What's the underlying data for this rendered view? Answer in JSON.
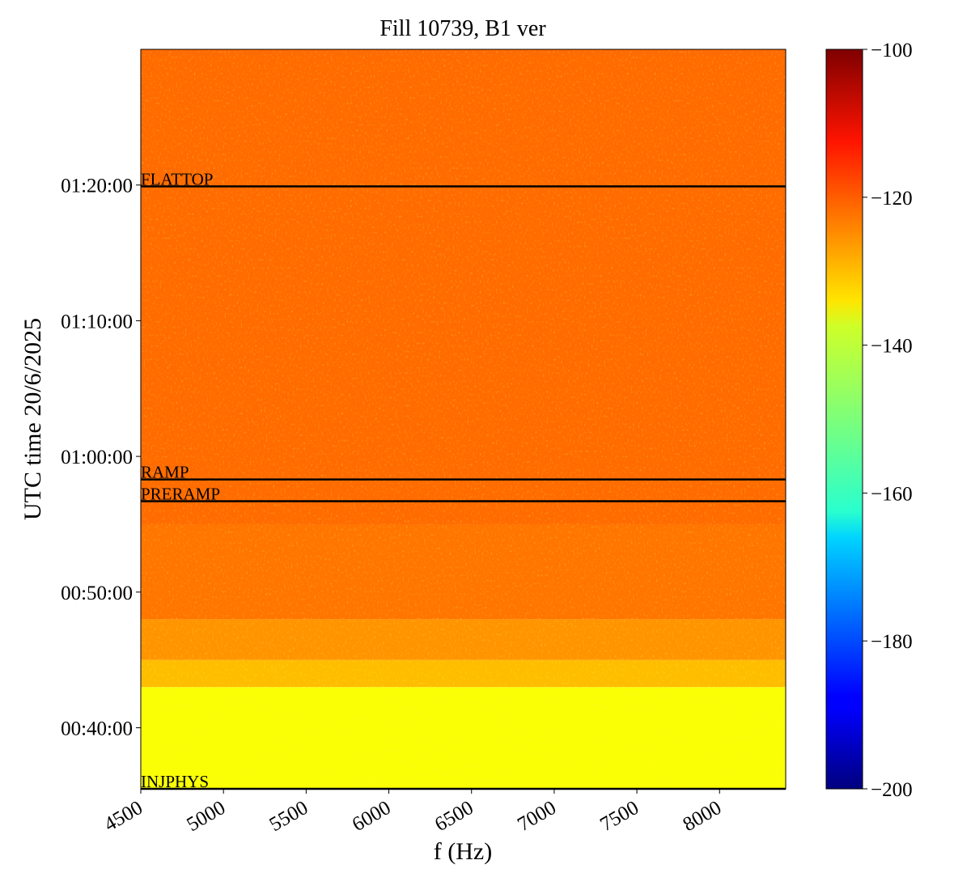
{
  "chart_data": {
    "type": "heatmap",
    "title": "Fill 10739, B1 ver",
    "x_label": "f (Hz)",
    "y_label": "UTC time 20/6/2025",
    "xlim": [
      4500,
      8400
    ],
    "xticks": [
      4500,
      5000,
      5500,
      6000,
      6500,
      7000,
      7500,
      8000
    ],
    "ylim": [
      35.5,
      90
    ],
    "yticks": [
      {
        "value": 40,
        "label": "00:40:00"
      },
      {
        "value": 50,
        "label": "00:50:00"
      },
      {
        "value": 60,
        "label": "01:00:00"
      },
      {
        "value": 70,
        "label": "01:10:00"
      },
      {
        "value": 80,
        "label": "01:20:00"
      }
    ],
    "y_bins": [
      35.5,
      43,
      45,
      48,
      55,
      90
    ],
    "values": [
      -138,
      -131,
      -127,
      -124,
      -123
    ],
    "colormap": "jet",
    "clim": [
      -200,
      -100
    ],
    "cticks": [
      {
        "value": -200,
        "label": "−200"
      },
      {
        "value": -180,
        "label": "−180"
      },
      {
        "value": -160,
        "label": "−160"
      },
      {
        "value": -140,
        "label": "−140"
      },
      {
        "value": -120,
        "label": "−120"
      },
      {
        "value": -100,
        "label": "−100"
      }
    ],
    "annotations": [
      {
        "label": "FLATTOP",
        "time": 79.9
      },
      {
        "label": "RAMP",
        "time": 58.3
      },
      {
        "label": "PRERAMP",
        "time": 56.7
      },
      {
        "label": "INJPHYS",
        "time": 35.5
      }
    ]
  }
}
